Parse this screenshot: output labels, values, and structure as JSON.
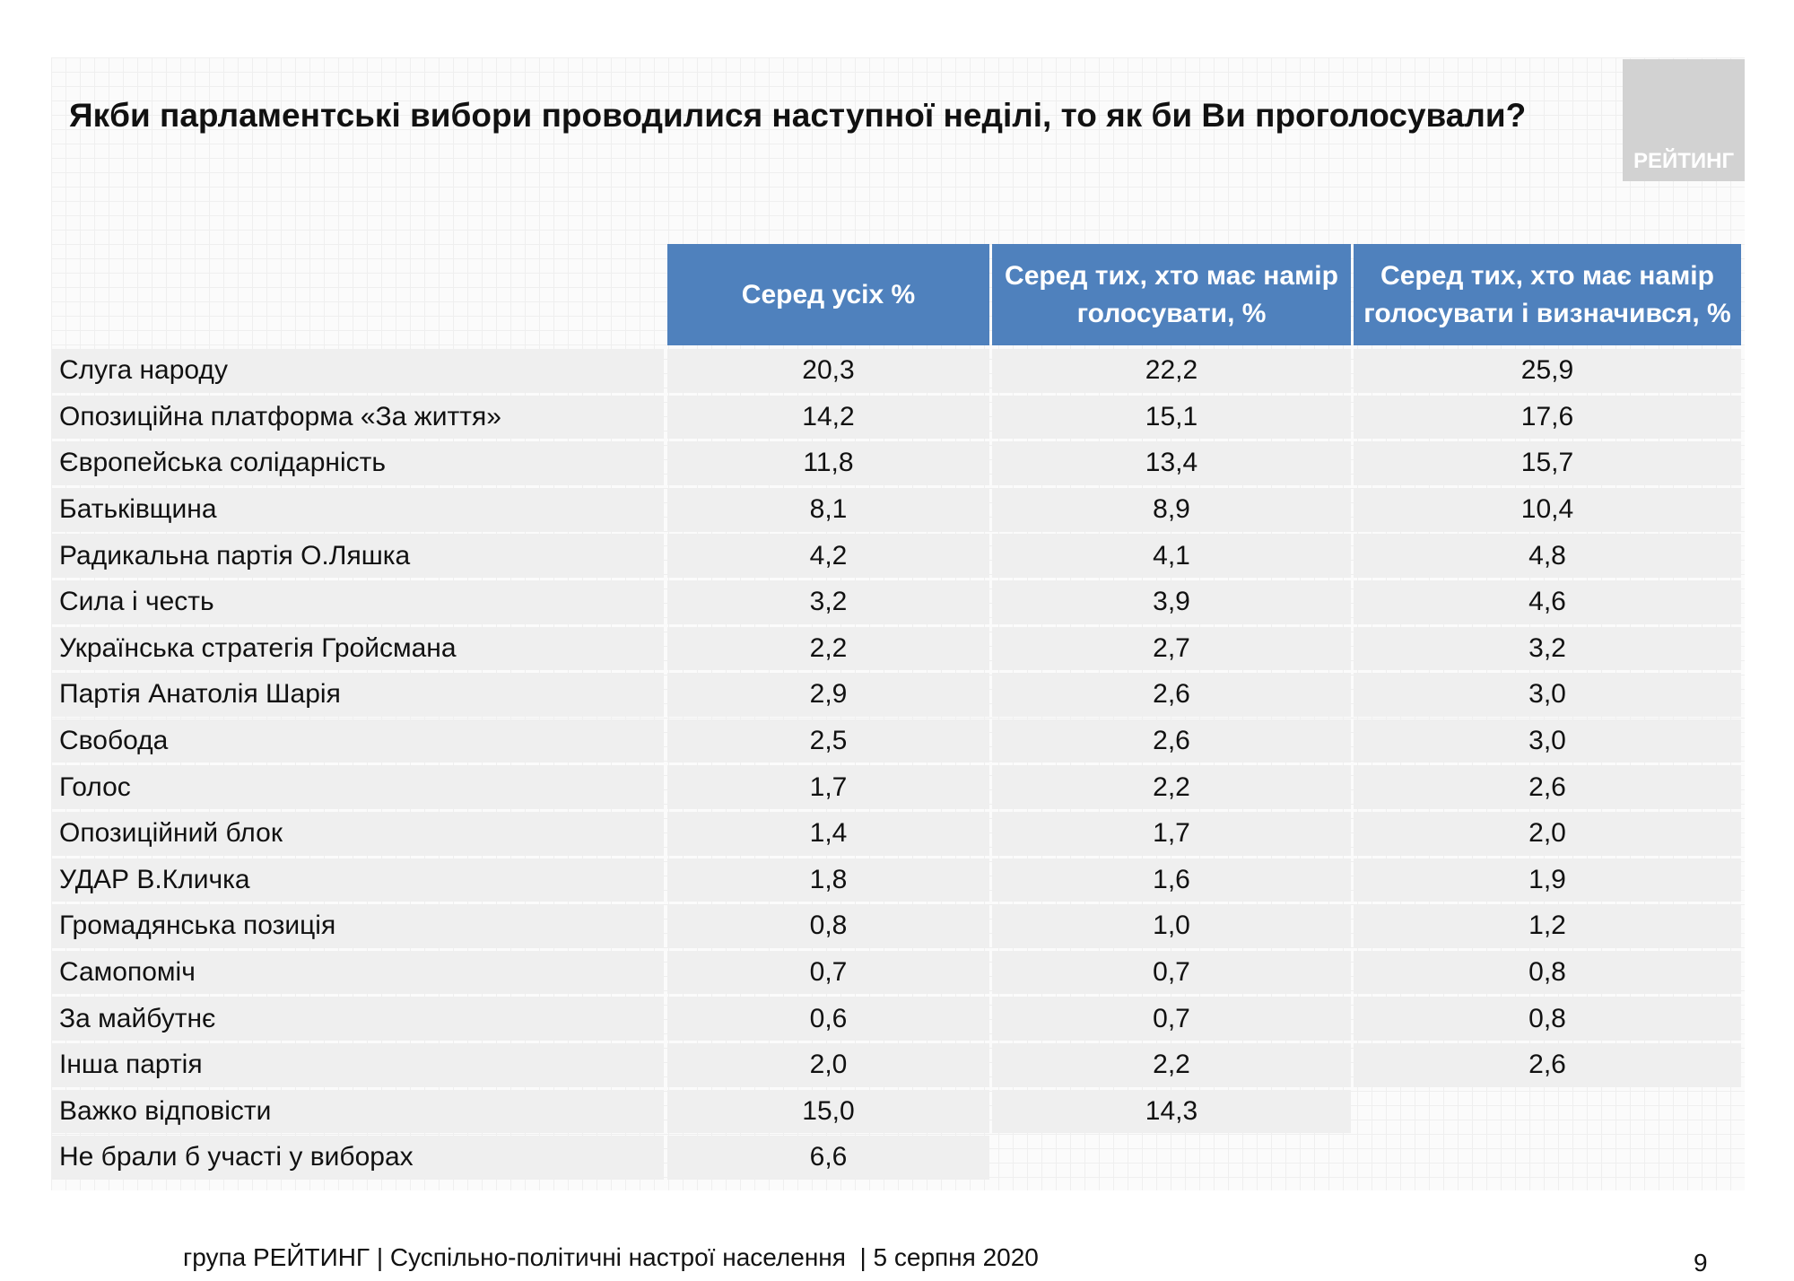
{
  "header": {
    "title": "Якби парламентські вибори проводилися наступної неділі, то як би Ви проголосували?",
    "logo": "РЕЙТИНГ"
  },
  "table": {
    "columns": [
      "Серед усіх %",
      "Серед тих, хто має намір голосувати, %",
      "Серед тих, хто має намір голосувати і визначився, %"
    ],
    "rows": [
      [
        "Слуга народу",
        "20,3",
        "22,2",
        "25,9"
      ],
      [
        "Опозиційна платформа «За життя»",
        "14,2",
        "15,1",
        "17,6"
      ],
      [
        "Європейська солідарність",
        "11,8",
        "13,4",
        "15,7"
      ],
      [
        "Батьківщина",
        "8,1",
        "8,9",
        "10,4"
      ],
      [
        "Радикальна партія О.Ляшка",
        "4,2",
        "4,1",
        "4,8"
      ],
      [
        "Сила і честь",
        "3,2",
        "3,9",
        "4,6"
      ],
      [
        "Українська стратегія Гройсмана",
        "2,2",
        "2,7",
        "3,2"
      ],
      [
        "Партія Анатолія Шарія",
        "2,9",
        "2,6",
        "3,0"
      ],
      [
        "Свобода",
        "2,5",
        "2,6",
        "3,0"
      ],
      [
        "Голос",
        "1,7",
        "2,2",
        "2,6"
      ],
      [
        "Опозиційний блок",
        "1,4",
        "1,7",
        "2,0"
      ],
      [
        "УДАР В.Кличка",
        "1,8",
        "1,6",
        "1,9"
      ],
      [
        "Громадянська позиція",
        "0,8",
        "1,0",
        "1,2"
      ],
      [
        "Самопоміч",
        "0,7",
        "0,7",
        "0,8"
      ],
      [
        "За майбутнє",
        "0,6",
        "0,7",
        "0,8"
      ],
      [
        "Інша партія",
        "2,0",
        "2,2",
        "2,6"
      ],
      [
        "Важко відповісти",
        "15,0",
        "14,3"
      ],
      [
        "Не брали б участі у виборах",
        "6,6"
      ]
    ]
  },
  "footer": {
    "text": "група РЕЙТИНГ | Суспільно-політичні настрої населення  | 5 серпня 2020",
    "page": "9"
  }
}
